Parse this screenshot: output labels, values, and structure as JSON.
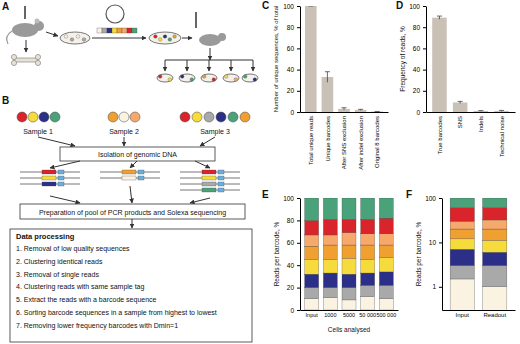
{
  "diagram_a": {
    "title": "A"
  },
  "diagram_b": {
    "title": "B",
    "samples": [
      "Sample 1",
      "Sample 2",
      "Sample 3"
    ],
    "isolation": "Isolation of genomic DNA",
    "pcr": "Preparation of pool of PCR products and Solexa sequencing",
    "processing_title": "Data processing",
    "steps": [
      "1. Removal of low quality sequences",
      "2. Clustering identical reads",
      "3. Removal of single reads",
      "4. Clustering reads with same sample tag",
      "5. Extract the reads with a barcode sequence",
      "6. Sorting barcode sequences in a sample from highest to lowest",
      "7. Removing lower frequency barcodes with Dmin=1"
    ]
  },
  "chart_data": [
    {
      "type": "bar",
      "title": "C",
      "ylabel": "Number of unique sequences, % of total",
      "categories": [
        "Total unique reads",
        "Unique barcodes",
        "After SNS exclusion",
        "After indel exclusion",
        "Original 8 barcodes"
      ],
      "values": [
        100,
        33,
        3,
        2,
        0.5
      ],
      "errors": [
        0,
        5,
        1,
        0.5,
        0
      ],
      "color": "#c9c0b6",
      "ylim": [
        0,
        100
      ],
      "yticks": [
        0,
        20,
        40,
        60,
        80,
        100
      ]
    },
    {
      "type": "bar",
      "title": "D",
      "ylabel": "Frequency of reads, %",
      "categories": [
        "True barcodes",
        "SNS",
        "Indels",
        "Technical noise"
      ],
      "values": [
        89,
        9,
        1,
        1
      ],
      "errors": [
        1.5,
        1,
        0.3,
        0.5
      ],
      "color": "#c9c0b6",
      "ylim": [
        0,
        100
      ],
      "yticks": [
        0,
        20,
        40,
        60,
        80,
        100
      ]
    },
    {
      "type": "bar",
      "stacked": true,
      "title": "E",
      "ylabel": "Reads per barcode, %",
      "xlabel": "Cells analysed",
      "categories": [
        "Input",
        "1000",
        "5000",
        "50 000",
        "500 000"
      ],
      "series": [
        {
          "color": "#fbf3e2",
          "values": [
            10,
            11,
            9,
            12,
            10
          ]
        },
        {
          "color": "#a9a9a9",
          "values": [
            10,
            9,
            11,
            10,
            12
          ]
        },
        {
          "color": "#2b2f87",
          "values": [
            12,
            13,
            12,
            11,
            12
          ]
        },
        {
          "color": "#f5dc3c",
          "values": [
            13,
            12,
            14,
            12,
            13
          ]
        },
        {
          "color": "#f0a030",
          "values": [
            12,
            13,
            12,
            13,
            11
          ]
        },
        {
          "color": "#f7a96b",
          "values": [
            10,
            9,
            11,
            10,
            10
          ]
        },
        {
          "color": "#d8242a",
          "values": [
            13,
            14,
            12,
            13,
            14
          ]
        },
        {
          "color": "#4aa27a",
          "values": [
            20,
            19,
            19,
            19,
            18
          ]
        }
      ],
      "ylim": [
        0,
        100
      ],
      "yticks": [
        0,
        20,
        40,
        60,
        80,
        100
      ]
    },
    {
      "type": "bar",
      "stacked": true,
      "log": "y",
      "title": "F",
      "ylabel": "Reads per barcode, %",
      "categories": [
        "Input",
        "Readout"
      ],
      "series": [
        {
          "color": "#fbf3e2",
          "values": [
            1.5,
            1
          ]
        },
        {
          "color": "#a9a9a9",
          "values": [
            1.5,
            2
          ]
        },
        {
          "color": "#2b2f87",
          "values": [
            4,
            3
          ]
        },
        {
          "color": "#f5dc3c",
          "values": [
            5,
            5
          ]
        },
        {
          "color": "#f0a030",
          "values": [
            8,
            9
          ]
        },
        {
          "color": "#f7a96b",
          "values": [
            10,
            12
          ]
        },
        {
          "color": "#d8242a",
          "values": [
            30,
            28
          ]
        },
        {
          "color": "#4aa27a",
          "values": [
            40,
            40
          ]
        }
      ],
      "ylim": [
        0.3,
        100
      ],
      "yticks": [
        1,
        10,
        100
      ]
    }
  ]
}
